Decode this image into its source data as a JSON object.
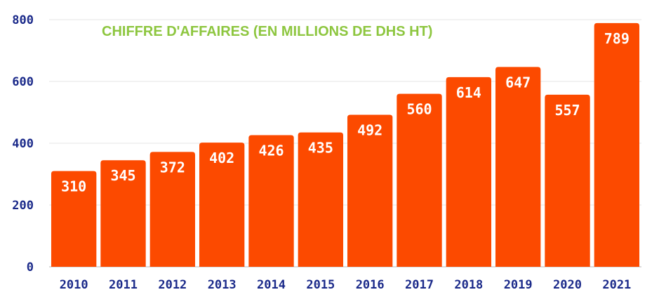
{
  "chart_data": {
    "type": "bar",
    "title": "CHIFFRE D'AFFAIRES (EN MILLIONS DE DHS HT)",
    "xlabel": "",
    "ylabel": "",
    "categories": [
      "2010",
      "2011",
      "2012",
      "2013",
      "2014",
      "2015",
      "2016",
      "2017",
      "2018",
      "2019",
      "2020",
      "2021"
    ],
    "values": [
      310,
      345,
      372,
      402,
      426,
      435,
      492,
      560,
      614,
      647,
      557,
      789
    ],
    "data_labels": [
      "310",
      "345",
      "372",
      "402",
      "426",
      "435",
      "492",
      "560",
      "614",
      "647",
      "557",
      "789"
    ],
    "y_ticks": [
      0,
      200,
      400,
      600,
      800
    ],
    "y_tick_labels": [
      "0",
      "200",
      "400",
      "600",
      "800"
    ],
    "ylim": [
      0,
      800
    ],
    "grid": true,
    "legend": "none",
    "colors": {
      "bar": "#FC4A00",
      "title": "#8DC63F",
      "axis_text": "#1B2A8A",
      "data_label": "#FFFFFF",
      "grid": "#E6E6E6",
      "baseline": "#CFCFCF"
    }
  }
}
